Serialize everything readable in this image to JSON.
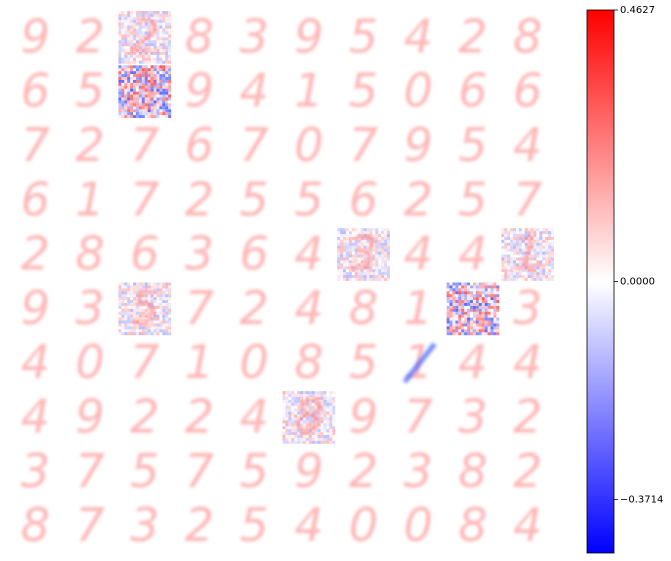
{
  "chart_data": {
    "type": "image-grid",
    "cells": [
      [
        "9",
        "2",
        "2",
        "8",
        "3",
        "9",
        "5",
        "4",
        "2",
        "8"
      ],
      [
        "6",
        "5",
        "3",
        "9",
        "4",
        "1",
        "5",
        "0",
        "6",
        "6"
      ],
      [
        "7",
        "2",
        "7",
        "6",
        "7",
        "0",
        "7",
        "9",
        "5",
        "4"
      ],
      [
        "6",
        "1",
        "7",
        "2",
        "5",
        "5",
        "6",
        "2",
        "5",
        "7"
      ],
      [
        "2",
        "8",
        "6",
        "3",
        "6",
        "4",
        "3",
        "4",
        "4",
        "1"
      ],
      [
        "9",
        "3",
        "5",
        "7",
        "2",
        "4",
        "8",
        "1",
        null,
        "3"
      ],
      [
        "4",
        "0",
        "7",
        "1",
        "0",
        "8",
        "5",
        "1",
        "4",
        "4"
      ],
      [
        "4",
        "9",
        "2",
        "2",
        "4",
        "8",
        "9",
        "7",
        "3",
        "2"
      ],
      [
        "3",
        "7",
        "5",
        "7",
        "5",
        "9",
        "2",
        "3",
        "8",
        "2"
      ],
      [
        "8",
        "7",
        "3",
        "2",
        "5",
        "4",
        "0",
        "0",
        "8",
        "4"
      ]
    ],
    "cmap": "bwr",
    "clim": [
      -0.4627,
      0.4627
    ],
    "cticks": [
      0.4627,
      {
        "value": 0,
        "label": "0.0000"
      },
      {
        "value": -0.3714,
        "label": "−0.3714"
      }
    ]
  }
}
